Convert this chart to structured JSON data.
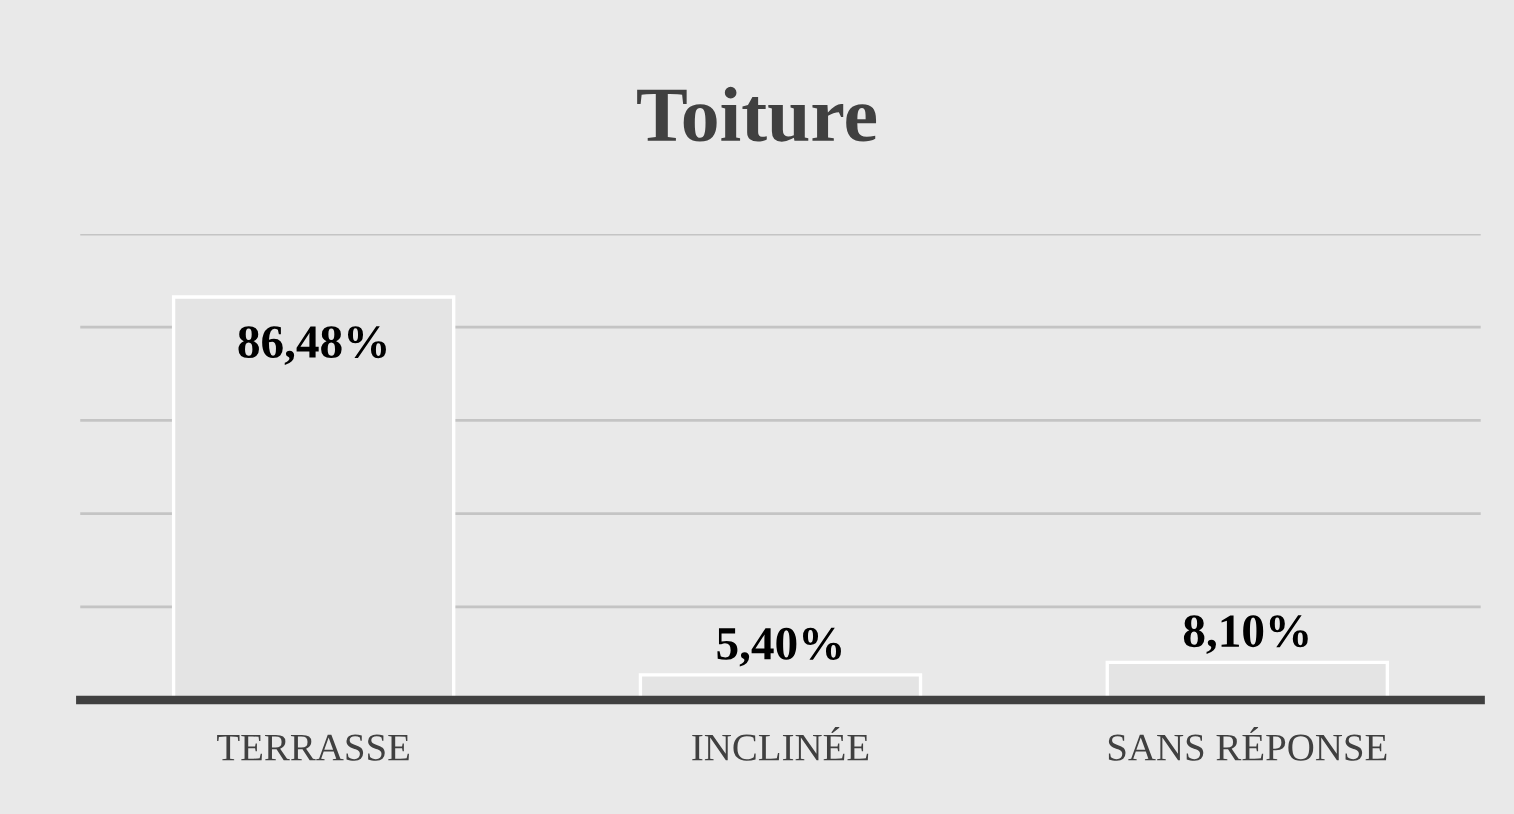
{
  "chart_data": {
    "type": "bar",
    "title": "Toiture",
    "categories": [
      "TERRASSE",
      "INCLINÉE",
      "SANS RÉPONSE"
    ],
    "values": [
      86.48,
      5.4,
      8.1
    ],
    "value_labels": [
      "86,48%",
      "5,40%",
      "8,10%"
    ],
    "color": "#e4e4e4",
    "ylim": [
      0,
      100
    ],
    "yticks": [
      {
        "value": 0,
        "label": null
      },
      {
        "value": 20,
        "label": null
      },
      {
        "value": 40,
        "label": null
      },
      {
        "value": 60,
        "label": null
      },
      {
        "value": 80,
        "label": null
      },
      {
        "value": 100,
        "label": null
      }
    ],
    "tick_labels": "x",
    "grid": "y",
    "legend": false
  }
}
